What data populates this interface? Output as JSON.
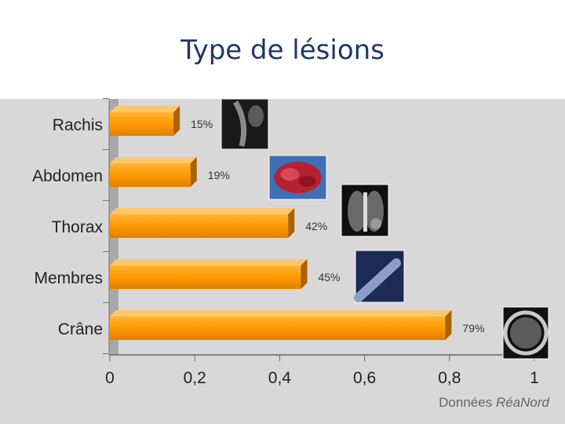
{
  "slide": {
    "title": "Type de lésions"
  },
  "chart_data": {
    "type": "bar",
    "orientation": "horizontal",
    "categories": [
      "Rachis",
      "Abdomen",
      "Thorax",
      "Membres",
      "Crâne"
    ],
    "values": [
      0.15,
      0.19,
      0.42,
      0.45,
      0.79
    ],
    "value_labels": [
      "15%",
      "19%",
      "42%",
      "45%",
      "79%"
    ],
    "xlim": [
      0,
      1
    ],
    "xticks": [
      0,
      0.2,
      0.4,
      0.6,
      0.8,
      1
    ],
    "xtick_labels": [
      "0",
      "0,2",
      "0,4",
      "0,6",
      "0,8",
      "1"
    ],
    "bar_color": "#ff9900",
    "source": {
      "prefix": "Données",
      "name": "RéaNord"
    },
    "thumbnails": [
      "spine-mri-image",
      "abdominal-organ-photo",
      "thorax-ct-image",
      "limb-xray-image",
      "skull-ct-image"
    ]
  }
}
